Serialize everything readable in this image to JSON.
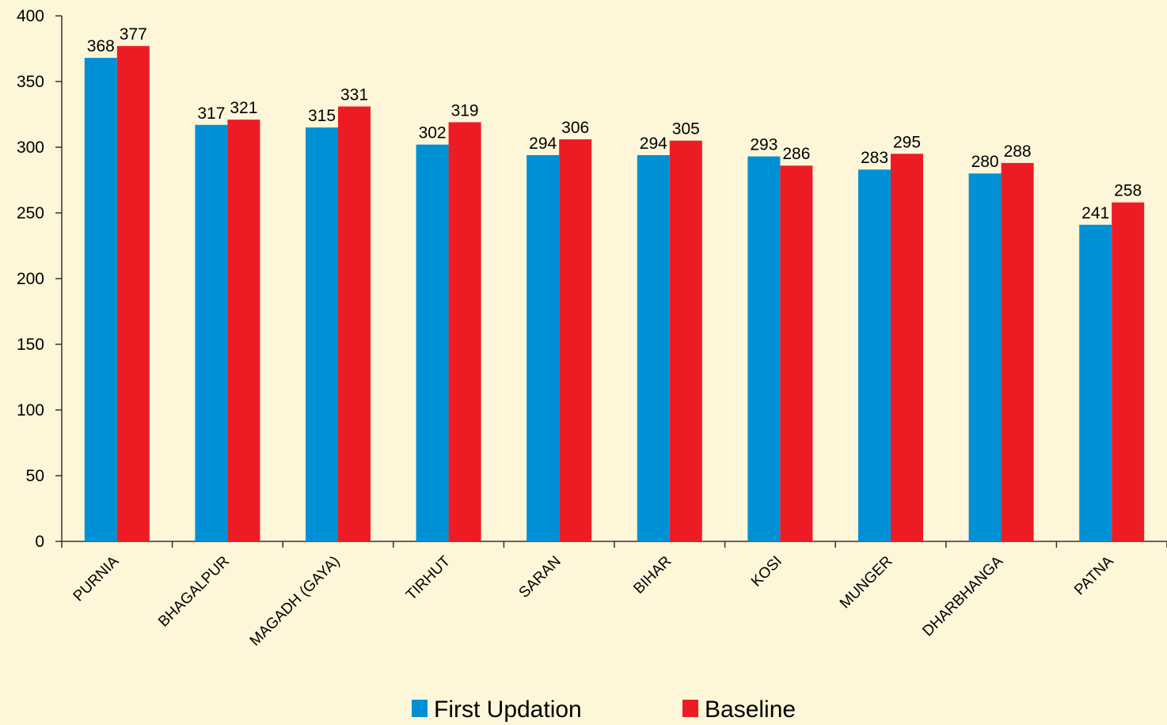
{
  "chart_data": {
    "type": "bar",
    "categories": [
      "PURNIA",
      "BHAGALPUR",
      "MAGADH (GAYA)",
      "TIRHUT",
      "SARAN",
      "BIHAR",
      "KOSI",
      "MUNGER",
      "DHARBHANGA",
      "PATNA"
    ],
    "series": [
      {
        "name": "First Updation",
        "color": "#0090d6",
        "values": [
          368,
          317,
          315,
          302,
          294,
          294,
          293,
          283,
          280,
          241
        ]
      },
      {
        "name": "Baseline",
        "color": "#ed1c24",
        "values": [
          377,
          321,
          331,
          319,
          306,
          305,
          286,
          295,
          288,
          258
        ]
      }
    ],
    "yticks": [
      0,
      50,
      100,
      150,
      200,
      250,
      300,
      350,
      400
    ],
    "ylim": [
      0,
      400
    ],
    "grid": false,
    "legend_position": "bottom-center",
    "background_color": "#fdf6d9",
    "axis_color": "#333333"
  }
}
